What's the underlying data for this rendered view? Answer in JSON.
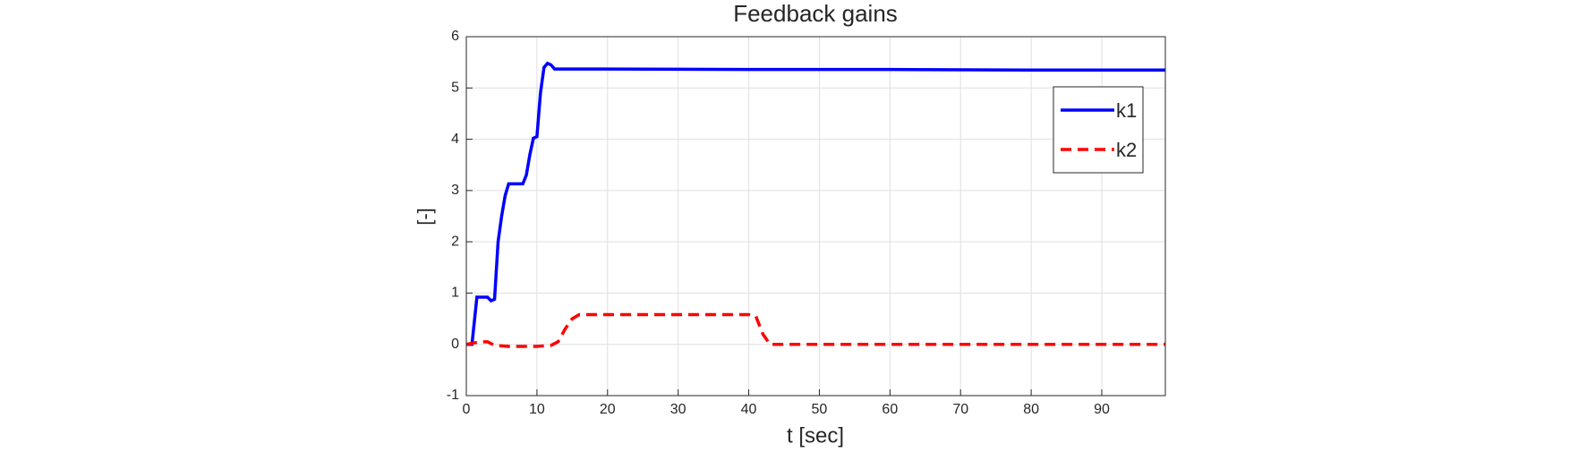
{
  "chart_data": {
    "type": "line",
    "title": "Feedback gains",
    "x_label": "t [sec]",
    "y_label": "[-]",
    "xlim": [
      0,
      99
    ],
    "xticks": [
      0,
      10,
      20,
      30,
      40,
      50,
      60,
      70,
      80,
      90
    ],
    "ylim": [
      -1,
      6
    ],
    "yticks": [
      -1,
      0,
      1,
      2,
      3,
      4,
      5,
      6
    ],
    "grid": true,
    "legend": "upper-right",
    "series": [
      {
        "name": "k1",
        "color": "#0000ff",
        "dash": false,
        "x": [
          0,
          0.8,
          1.5,
          3,
          3.5,
          4,
          4.5,
          5,
          5.5,
          6,
          6.5,
          8,
          8.5,
          9,
          9.5,
          10,
          10.5,
          11,
          11.5,
          12,
          12.5,
          20,
          40,
          60,
          80,
          99
        ],
        "values": [
          0,
          0,
          0.92,
          0.92,
          0.85,
          0.88,
          2.0,
          2.5,
          2.9,
          3.13,
          3.13,
          3.13,
          3.3,
          3.7,
          4.02,
          4.05,
          4.9,
          5.4,
          5.48,
          5.45,
          5.37,
          5.37,
          5.36,
          5.36,
          5.35,
          5.35
        ]
      },
      {
        "name": "k2",
        "color": "#ff0000",
        "dash": true,
        "x": [
          0,
          2,
          3,
          4,
          6,
          8,
          10,
          12,
          13,
          14,
          15,
          16,
          17,
          20,
          30,
          40,
          41,
          42,
          43,
          50,
          99
        ],
        "values": [
          0,
          0.05,
          0.05,
          -0.02,
          -0.04,
          -0.04,
          -0.04,
          -0.02,
          0.05,
          0.3,
          0.5,
          0.58,
          0.58,
          0.58,
          0.58,
          0.58,
          0.55,
          0.2,
          0,
          0,
          0
        ]
      }
    ]
  }
}
